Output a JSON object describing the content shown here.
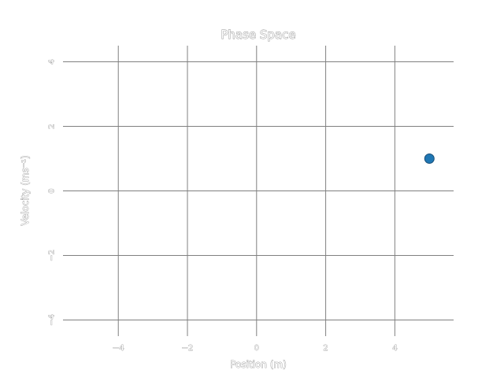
{
  "chart_data": {
    "type": "scatter",
    "title": "Phase Space",
    "xlabel": "Position (m)",
    "ylabel": "Velocity (ms⁻¹)",
    "xlim": [
      -5.6,
      5.7
    ],
    "ylim": [
      -4.5,
      4.5
    ],
    "xticks": [
      -4,
      -2,
      0,
      2,
      4
    ],
    "xtick_labels": [
      "−4",
      "−2",
      "0",
      "2",
      "4"
    ],
    "yticks": [
      -4,
      -2,
      0,
      2,
      4
    ],
    "ytick_labels": [
      "−4",
      "−2",
      "0",
      "2",
      "4"
    ],
    "grid": true,
    "points": [
      {
        "x": 5.0,
        "y": 1.0
      }
    ],
    "point_color": "#1f77b4"
  }
}
